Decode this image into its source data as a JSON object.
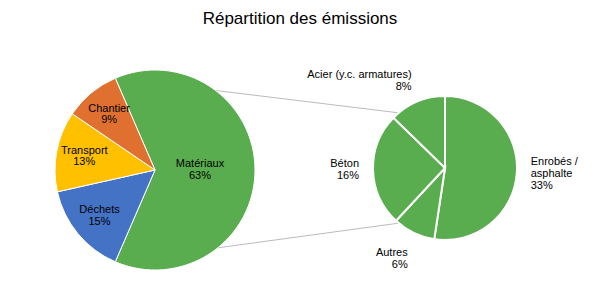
{
  "chart_data": [
    {
      "type": "pie",
      "title": "Répartition des émissions",
      "categories": [
        "Matériaux",
        "Déchets",
        "Transport",
        "Chantier"
      ],
      "values": [
        63,
        15,
        13,
        9
      ],
      "value_labels": [
        "63%",
        "15%",
        "13%",
        "9%"
      ],
      "colors": [
        "#5aad4e",
        "#4472c4",
        "#ffc000",
        "#e07030"
      ],
      "data_labels": true
    },
    {
      "type": "pie",
      "categories": [
        "Enrobés /\nasphalte",
        "Autres",
        "Béton",
        "Acier (y.c. armatures)"
      ],
      "values": [
        33,
        6,
        16,
        8
      ],
      "value_labels": [
        "33%",
        "6%",
        "16%",
        "8%"
      ],
      "colors": [
        "#5aad4e",
        "#5aad4e",
        "#5aad4e",
        "#5aad4e"
      ],
      "data_labels": true
    }
  ]
}
